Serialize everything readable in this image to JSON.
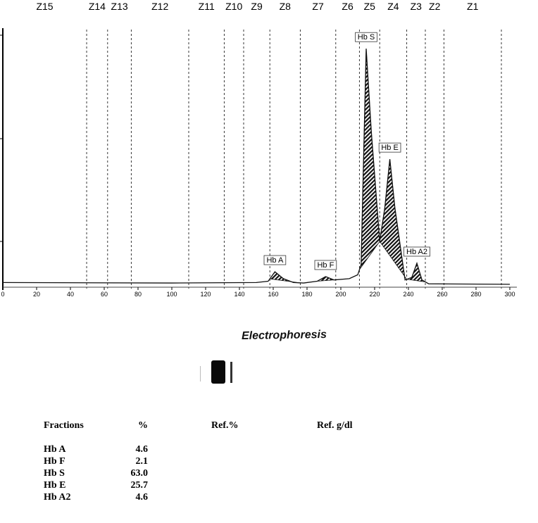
{
  "chart_data": {
    "type": "line",
    "title": "",
    "xlabel": "",
    "ylabel": "",
    "xlim": [
      0,
      300
    ],
    "x_ticks": [
      0,
      20,
      40,
      60,
      80,
      100,
      120,
      140,
      160,
      180,
      200,
      220,
      240,
      260,
      280,
      300
    ],
    "y_units": "relative",
    "zone_labels": [
      "Z15",
      "Z14",
      "Z13",
      "Z12",
      "Z11",
      "Z10",
      "Z9",
      "Z8",
      "Z7",
      "Z6",
      "Z5",
      "Z4",
      "Z3",
      "Z2",
      "Z1"
    ],
    "zone_boundaries": [
      49.6,
      62,
      76,
      110,
      131,
      142.5,
      158,
      176,
      197,
      211,
      223,
      239,
      250,
      261,
      295
    ],
    "curve": [
      [
        0,
        1
      ],
      [
        100,
        0.8
      ],
      [
        150,
        1
      ],
      [
        157,
        1.5
      ],
      [
        161,
        5.2
      ],
      [
        166,
        2.5
      ],
      [
        172,
        1
      ],
      [
        178,
        0.8
      ],
      [
        186,
        1.5
      ],
      [
        191,
        3.3
      ],
      [
        196,
        2
      ],
      [
        205,
        2.5
      ],
      [
        210,
        4
      ],
      [
        212,
        8
      ],
      [
        215,
        92
      ],
      [
        218,
        60
      ],
      [
        223,
        17
      ],
      [
        226,
        30
      ],
      [
        229,
        49
      ],
      [
        232,
        30
      ],
      [
        238,
        2
      ],
      [
        242,
        3
      ],
      [
        245,
        8.5
      ],
      [
        248,
        2
      ],
      [
        252,
        0.5
      ],
      [
        300,
        0.3
      ]
    ],
    "peaks": [
      {
        "label": "Hb A",
        "x": 161,
        "range": [
          158,
          176
        ]
      },
      {
        "label": "Hb F",
        "x": 191,
        "range": [
          186,
          197
        ]
      },
      {
        "label": "Hb S",
        "x": 215,
        "range": [
          211,
          223
        ]
      },
      {
        "label": "Hb E",
        "x": 229,
        "range": [
          223,
          239
        ]
      },
      {
        "label": "Hb A2",
        "x": 245,
        "range": [
          239,
          250
        ]
      }
    ]
  },
  "electrophoresis": {
    "title": "Electrophoresis"
  },
  "table": {
    "headers": [
      "Fractions",
      "%",
      "Ref.%",
      "Ref. g/dl"
    ],
    "rows": [
      {
        "name": "Hb A",
        "pct": "4.6"
      },
      {
        "name": "Hb F",
        "pct": "2.1"
      },
      {
        "name": "Hb S",
        "pct": "63.0"
      },
      {
        "name": "Hb E",
        "pct": "25.7"
      },
      {
        "name": "Hb A2",
        "pct": "4.6"
      }
    ]
  }
}
